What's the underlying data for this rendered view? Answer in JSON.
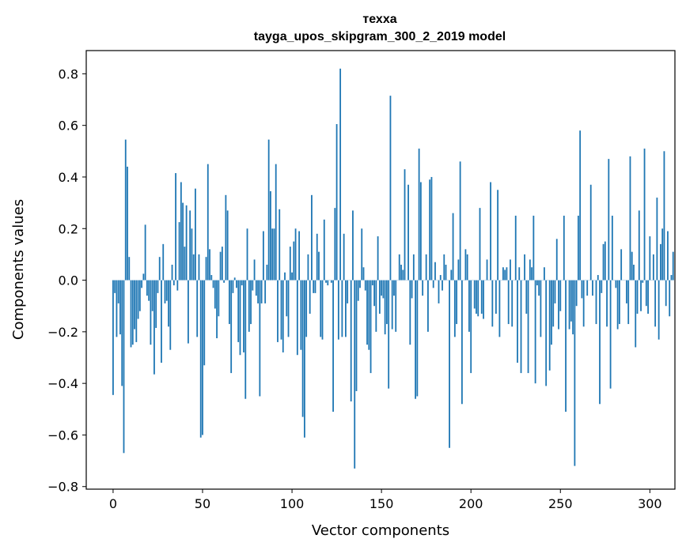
{
  "chart_data": {
    "type": "bar",
    "title": "техха",
    "subtitle": "tayga_upos_skipgram_300_2_2019 model",
    "xlabel": "Vector components",
    "ylabel": "Components values",
    "xlim": [
      -15,
      314
    ],
    "ylim": [
      -0.81,
      0.89
    ],
    "xticks": [
      0,
      50,
      100,
      150,
      200,
      250,
      300
    ],
    "yticks": [
      -0.8,
      -0.6,
      -0.4,
      -0.2,
      0.0,
      0.2,
      0.4,
      0.6,
      0.8
    ],
    "ytick_labels": [
      "−0.8",
      "−0.6",
      "−0.4",
      "−0.2",
      "0.0",
      "0.2",
      "0.4",
      "0.6",
      "0.8"
    ],
    "bar_color": "#1f77b4",
    "series": [
      {
        "name": "техха",
        "values": [
          -0.445,
          -0.05,
          -0.22,
          -0.09,
          -0.21,
          -0.41,
          -0.67,
          0.545,
          0.44,
          0.09,
          -0.26,
          -0.25,
          -0.19,
          -0.24,
          -0.15,
          -0.12,
          -0.03,
          0.025,
          0.215,
          -0.06,
          -0.08,
          -0.25,
          -0.12,
          -0.365,
          -0.185,
          -0.05,
          0.09,
          -0.32,
          0.14,
          -0.09,
          -0.08,
          -0.18,
          -0.27,
          0.06,
          -0.02,
          0.415,
          -0.04,
          0.225,
          0.38,
          0.3,
          0.13,
          0.29,
          -0.245,
          0.27,
          0.2,
          0.1,
          0.355,
          -0.22,
          0.1,
          -0.61,
          -0.6,
          -0.33,
          0.09,
          0.45,
          0.12,
          0.02,
          -0.03,
          -0.11,
          -0.225,
          -0.14,
          0.11,
          0.13,
          -0.01,
          0.33,
          0.27,
          -0.17,
          -0.36,
          -0.05,
          0.01,
          -0.03,
          -0.24,
          -0.29,
          -0.02,
          -0.28,
          -0.46,
          0.2,
          -0.2,
          -0.17,
          -0.04,
          0.08,
          -0.06,
          -0.09,
          -0.45,
          -0.09,
          0.19,
          -0.09,
          0.06,
          0.545,
          0.345,
          0.2,
          0.2,
          0.45,
          -0.24,
          0.275,
          -0.23,
          -0.28,
          0.03,
          -0.14,
          -0.22,
          0.13,
          0.03,
          0.15,
          0.2,
          -0.29,
          0.19,
          -0.27,
          -0.53,
          -0.61,
          -0.22,
          0.1,
          -0.13,
          0.33,
          -0.05,
          -0.05,
          0.18,
          0.11,
          -0.22,
          -0.23,
          0.235,
          -0.01,
          -0.02,
          0.0,
          -0.01,
          -0.51,
          0.28,
          0.605,
          -0.23,
          0.82,
          -0.22,
          0.18,
          -0.22,
          -0.09,
          0.0,
          -0.47,
          0.27,
          -0.73,
          -0.43,
          -0.08,
          -0.03,
          0.2,
          0.05,
          -0.04,
          -0.25,
          -0.27,
          -0.36,
          -0.02,
          -0.1,
          -0.2,
          0.17,
          -0.13,
          -0.06,
          -0.07,
          -0.21,
          -0.17,
          -0.42,
          0.715,
          -0.19,
          -0.06,
          -0.2,
          0.0,
          0.1,
          0.06,
          0.04,
          0.43,
          0.0,
          0.37,
          -0.25,
          -0.07,
          0.1,
          -0.46,
          -0.45,
          0.51,
          0.38,
          -0.06,
          0.0,
          0.1,
          -0.2,
          0.39,
          0.4,
          -0.03,
          0.07,
          0.0,
          -0.09,
          0.02,
          -0.04,
          0.1,
          0.06,
          0.0,
          -0.65,
          0.04,
          0.26,
          -0.22,
          -0.17,
          0.08,
          0.46,
          -0.48,
          0.0,
          0.12,
          0.1,
          -0.2,
          -0.36,
          0.0,
          -0.11,
          -0.13,
          -0.14,
          0.28,
          -0.13,
          -0.15,
          0.0,
          0.08,
          0.0,
          0.38,
          -0.18,
          0.0,
          -0.13,
          0.35,
          -0.22,
          0.0,
          0.05,
          0.04,
          0.05,
          -0.17,
          0.08,
          -0.18,
          0.0,
          0.25,
          -0.32,
          0.05,
          -0.36,
          0.0,
          0.1,
          -0.13,
          -0.36,
          0.08,
          0.05,
          0.25,
          -0.4,
          -0.02,
          -0.06,
          -0.22,
          0.0,
          0.05,
          -0.41,
          0.0,
          -0.35,
          -0.25,
          -0.18,
          -0.09,
          0.16,
          -0.19,
          -0.12,
          0.0,
          0.25,
          -0.51,
          0.0,
          -0.19,
          -0.16,
          -0.21,
          -0.72,
          -0.1,
          0.25,
          0.58,
          -0.07,
          -0.18,
          0.0,
          -0.06,
          0.0,
          0.37,
          -0.06,
          0.0,
          -0.17,
          0.02,
          -0.48,
          -0.05,
          0.14,
          0.15,
          -0.18,
          0.47,
          -0.42,
          0.25,
          0.0,
          -0.03,
          -0.19,
          -0.17,
          0.12,
          0.0,
          0.0,
          -0.09,
          -0.17,
          0.48,
          0.11,
          0.06,
          -0.26,
          -0.13,
          0.27,
          -0.12,
          -0.01,
          0.51,
          -0.1,
          -0.13,
          0.17,
          0.0,
          0.1,
          -0.18,
          0.32,
          -0.23,
          0.14,
          0.2,
          0.5,
          -0.1,
          0.19,
          -0.14,
          0.02,
          0.11
        ]
      }
    ]
  }
}
